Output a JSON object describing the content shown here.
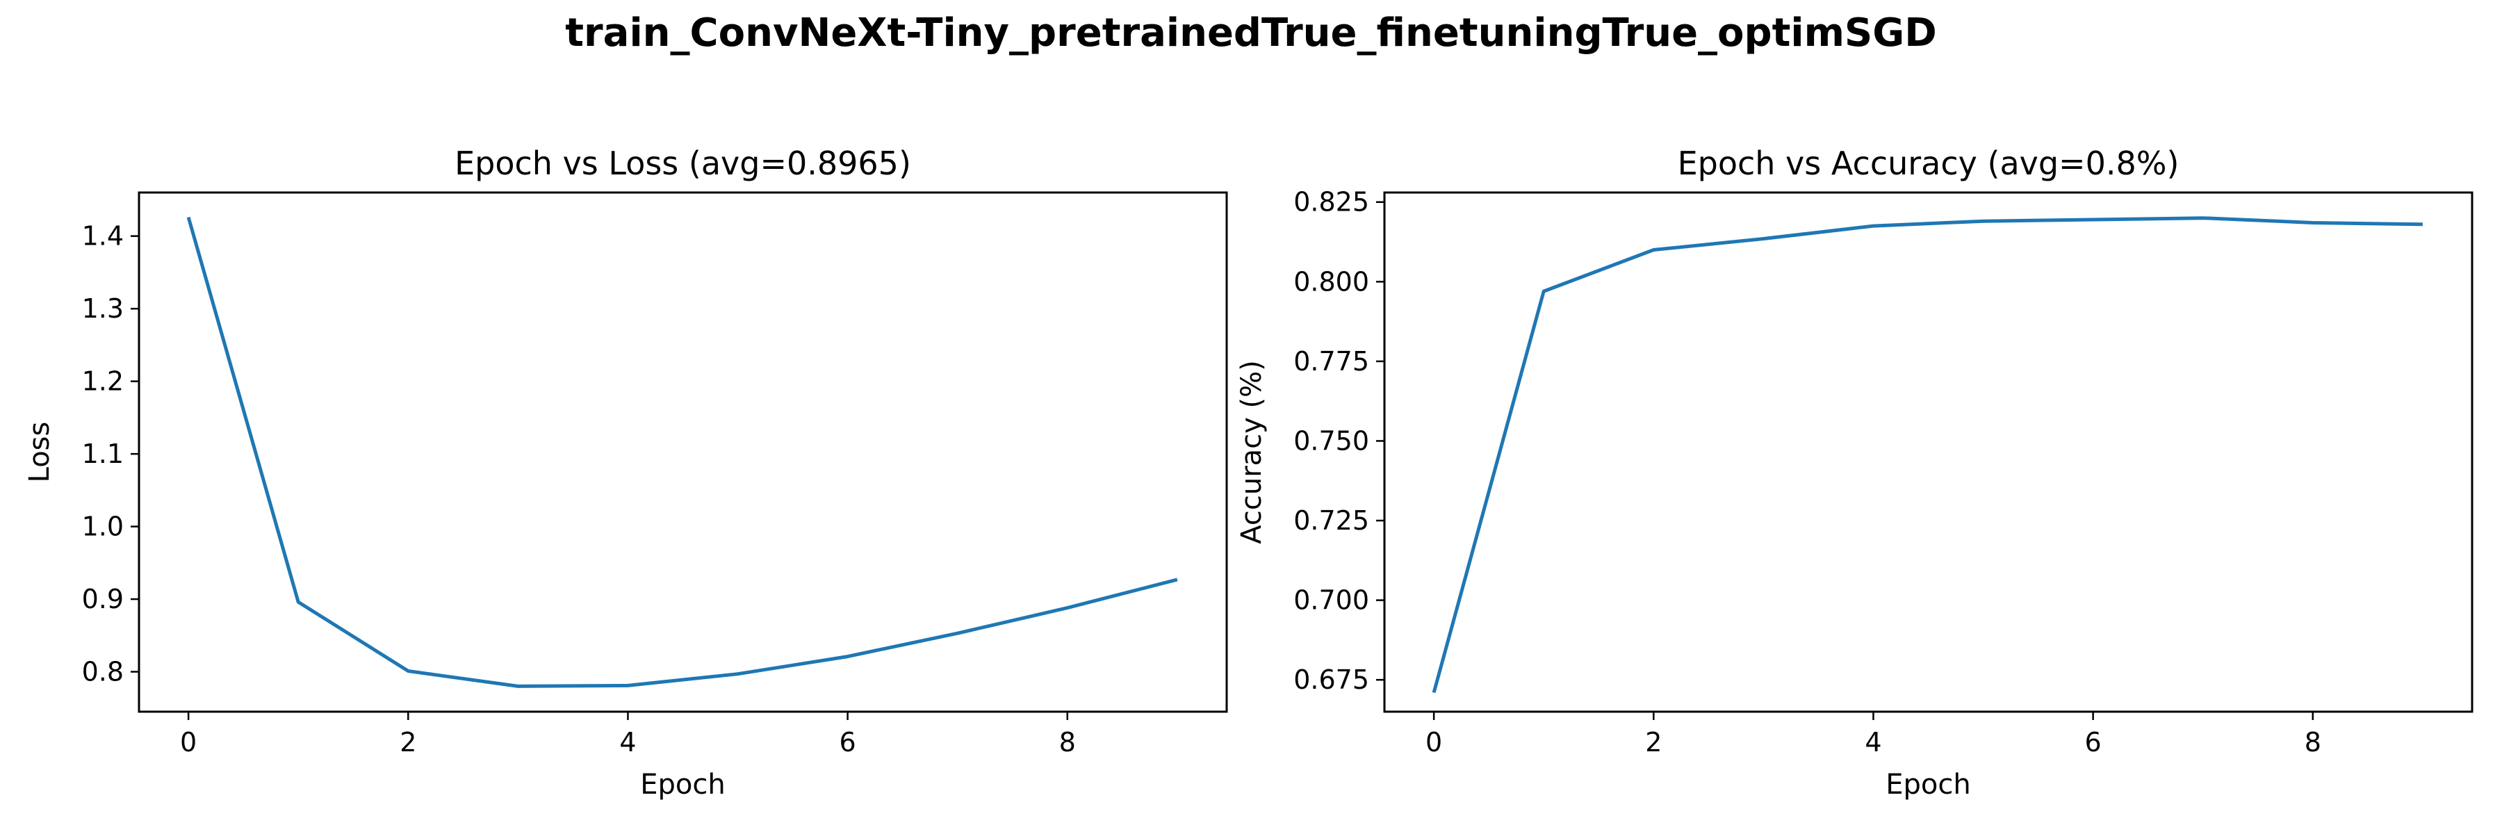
{
  "figure": {
    "suptitle": "train_ConvNeXt-Tiny_pretrainedTrue_finetuningTrue_optimSGD"
  },
  "chart_data": [
    {
      "type": "line",
      "title": "Epoch vs Loss (avg=0.8965)",
      "xlabel": "Epoch",
      "ylabel": "Loss",
      "xlim": [
        -0.45,
        9.45
      ],
      "ylim": [
        0.745,
        1.46
      ],
      "xticks": [
        0,
        2,
        4,
        6,
        8
      ],
      "xtick_labels": [
        "0",
        "2",
        "4",
        "6",
        "8"
      ],
      "yticks": [
        0.8,
        0.9,
        1.0,
        1.1,
        1.2,
        1.3,
        1.4
      ],
      "ytick_labels": [
        "0.8",
        "0.9",
        "1.0",
        "1.1",
        "1.2",
        "1.3",
        "1.4"
      ],
      "grid": false,
      "color": "#1f77b4",
      "x": [
        0,
        1,
        2,
        3,
        4,
        5,
        6,
        7,
        8,
        9
      ],
      "series": [
        {
          "values": [
            1.426,
            0.896,
            0.801,
            0.78,
            0.781,
            0.797,
            0.821,
            0.853,
            0.888,
            0.927
          ]
        }
      ]
    },
    {
      "type": "line",
      "title": "Epoch vs Accuracy (avg=0.8%)",
      "xlabel": "Epoch",
      "ylabel": "Accuracy (%)",
      "xlim": [
        -0.45,
        9.45
      ],
      "ylim": [
        0.665,
        0.828
      ],
      "xticks": [
        0,
        2,
        4,
        6,
        8
      ],
      "xtick_labels": [
        "0",
        "2",
        "4",
        "6",
        "8"
      ],
      "yticks": [
        0.675,
        0.7,
        0.725,
        0.75,
        0.775,
        0.8,
        0.825
      ],
      "ytick_labels": [
        "0.675",
        "0.700",
        "0.725",
        "0.750",
        "0.775",
        "0.800",
        "0.825"
      ],
      "grid": false,
      "color": "#1f77b4",
      "x": [
        0,
        1,
        2,
        3,
        4,
        5,
        6,
        7,
        8,
        9
      ],
      "series": [
        {
          "values": [
            0.671,
            0.797,
            0.81,
            0.8135,
            0.8175,
            0.819,
            0.8195,
            0.82,
            0.8185,
            0.818
          ]
        }
      ]
    }
  ]
}
